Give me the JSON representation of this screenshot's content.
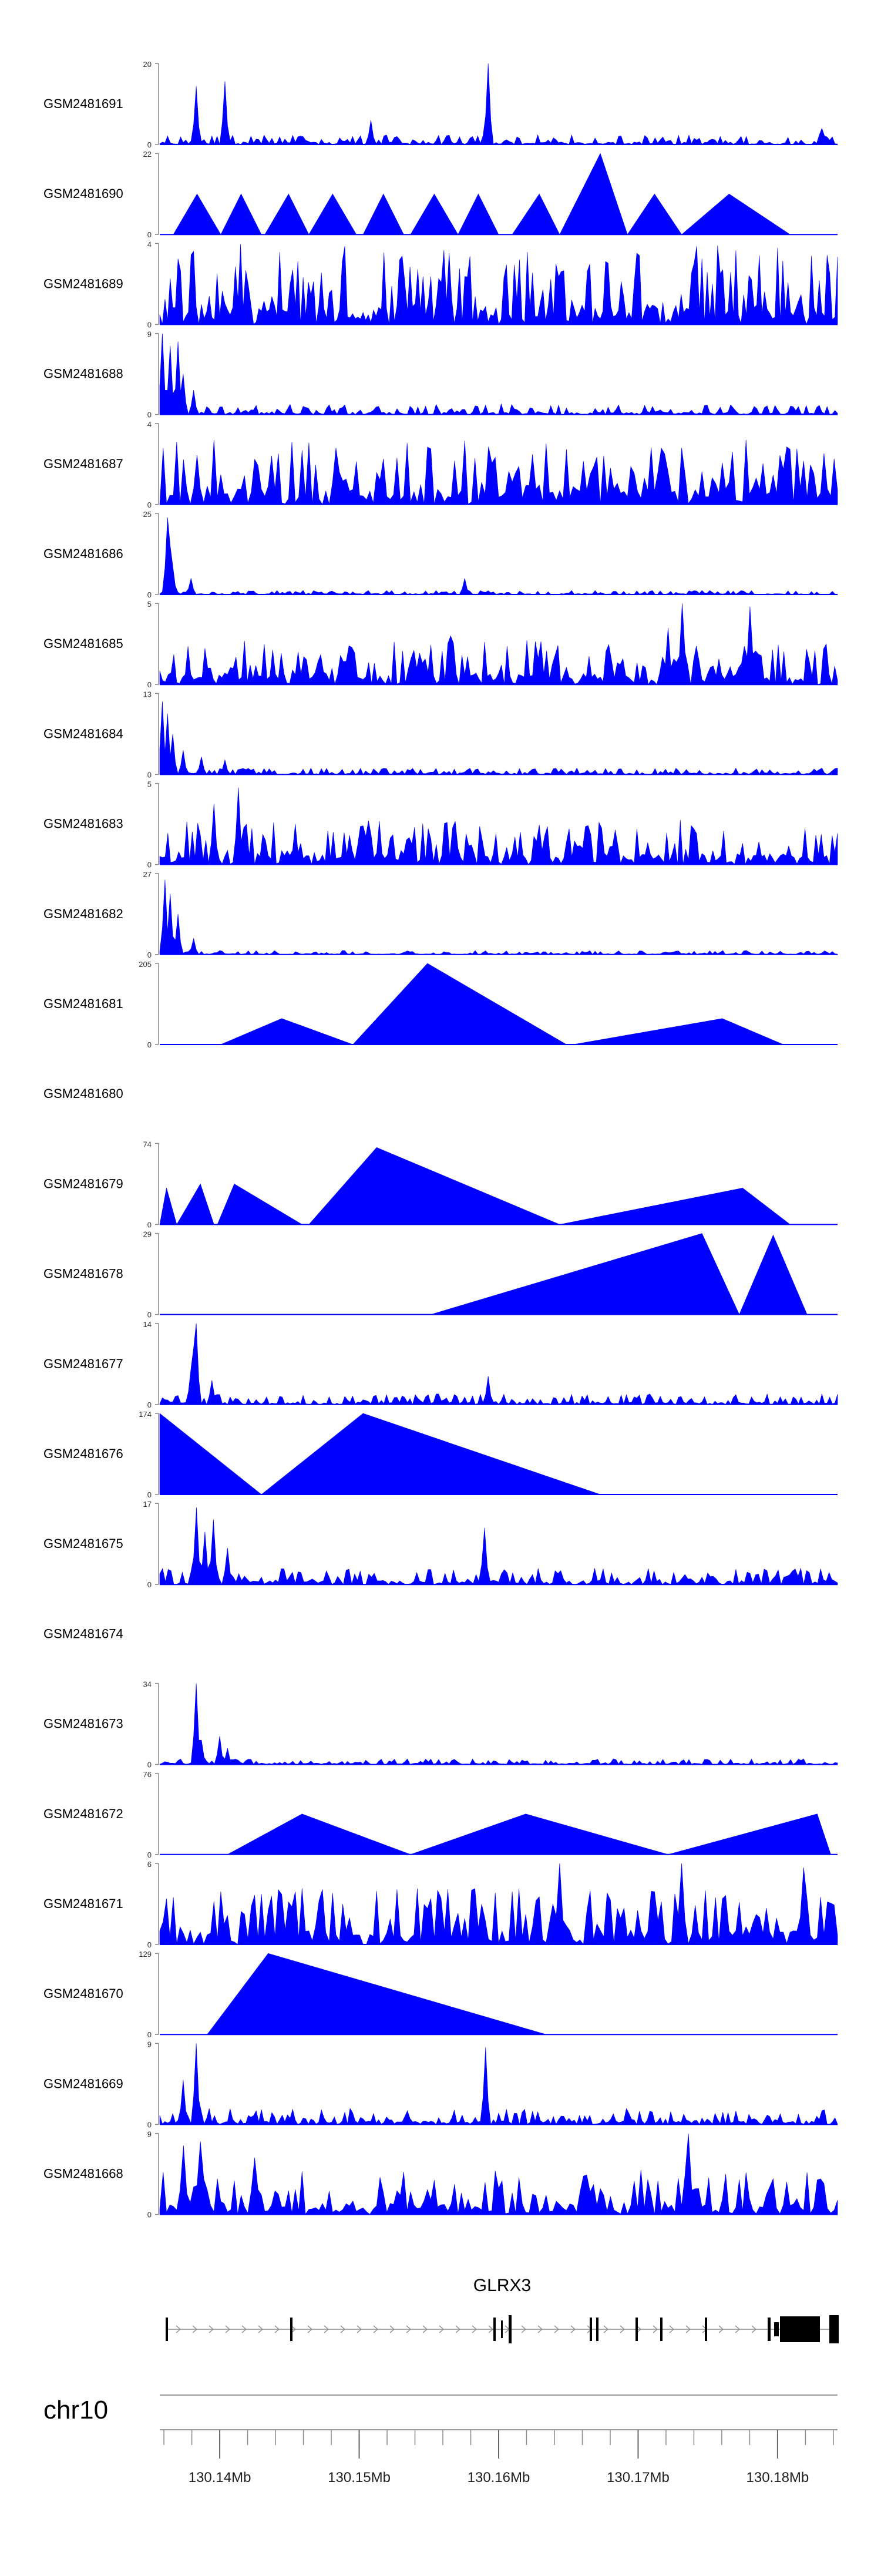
{
  "chart_data": {
    "type": "area",
    "title": "",
    "xlabel": "",
    "ylabel": "",
    "color": "#0000ff",
    "chromosome": "chr10",
    "gene": "GLRX3",
    "x_ticks": [
      {
        "value": 130.14,
        "label": "130.14Mb"
      },
      {
        "value": 130.15,
        "label": "130.15Mb"
      },
      {
        "value": 130.16,
        "label": "130.16Mb"
      },
      {
        "value": 130.17,
        "label": "130.17Mb"
      },
      {
        "value": 130.18,
        "label": "130.18Mb"
      }
    ],
    "tracks": [
      {
        "name": "GSM2481691",
        "ymin": "0",
        "ymax": "20",
        "ylim": [
          0,
          20
        ]
      },
      {
        "name": "GSM2481690",
        "ymin": "0",
        "ymax": "22",
        "ylim": [
          0,
          22
        ]
      },
      {
        "name": "GSM2481689",
        "ymin": "0",
        "ymax": "4",
        "ylim": [
          0,
          4
        ]
      },
      {
        "name": "GSM2481688",
        "ymin": "0",
        "ymax": "9",
        "ylim": [
          0,
          9
        ]
      },
      {
        "name": "GSM2481687",
        "ymin": "0",
        "ymax": "4",
        "ylim": [
          0,
          4
        ]
      },
      {
        "name": "GSM2481686",
        "ymin": "0",
        "ymax": "25",
        "ylim": [
          0,
          25
        ]
      },
      {
        "name": "GSM2481685",
        "ymin": "0",
        "ymax": "5",
        "ylim": [
          0,
          5
        ]
      },
      {
        "name": "GSM2481684",
        "ymin": "0",
        "ymax": "13",
        "ylim": [
          0,
          13
        ]
      },
      {
        "name": "GSM2481683",
        "ymin": "0",
        "ymax": "5",
        "ylim": [
          0,
          5
        ]
      },
      {
        "name": "GSM2481682",
        "ymin": "0",
        "ymax": "27",
        "ylim": [
          0,
          27
        ]
      },
      {
        "name": "GSM2481681",
        "ymin": "0",
        "ymax": "205",
        "ylim": [
          0,
          205
        ]
      },
      {
        "name": "GSM2481680",
        "ymin": "",
        "ymax": "",
        "ylim": null
      },
      {
        "name": "GSM2481679",
        "ymin": "0",
        "ymax": "74",
        "ylim": [
          0,
          74
        ]
      },
      {
        "name": "GSM2481678",
        "ymin": "0",
        "ymax": "29",
        "ylim": [
          0,
          29
        ]
      },
      {
        "name": "GSM2481677",
        "ymin": "0",
        "ymax": "14",
        "ylim": [
          0,
          14
        ]
      },
      {
        "name": "GSM2481676",
        "ymin": "0",
        "ymax": "174",
        "ylim": [
          0,
          174
        ]
      },
      {
        "name": "GSM2481675",
        "ymin": "0",
        "ymax": "17",
        "ylim": [
          0,
          17
        ]
      },
      {
        "name": "GSM2481674",
        "ymin": "",
        "ymax": "",
        "ylim": null
      },
      {
        "name": "GSM2481673",
        "ymin": "0",
        "ymax": "34",
        "ylim": [
          0,
          34
        ]
      },
      {
        "name": "GSM2481672",
        "ymin": "0",
        "ymax": "76",
        "ylim": [
          0,
          76
        ]
      },
      {
        "name": "GSM2481671",
        "ymin": "0",
        "ymax": "6",
        "ylim": [
          0,
          6
        ]
      },
      {
        "name": "GSM2481670",
        "ymin": "0",
        "ymax": "129",
        "ylim": [
          0,
          129
        ]
      },
      {
        "name": "GSM2481669",
        "ymin": "0",
        "ymax": "9",
        "ylim": [
          0,
          9
        ]
      },
      {
        "name": "GSM2481668",
        "ymin": "0",
        "ymax": "9",
        "ylim": [
          0,
          9
        ]
      }
    ]
  }
}
